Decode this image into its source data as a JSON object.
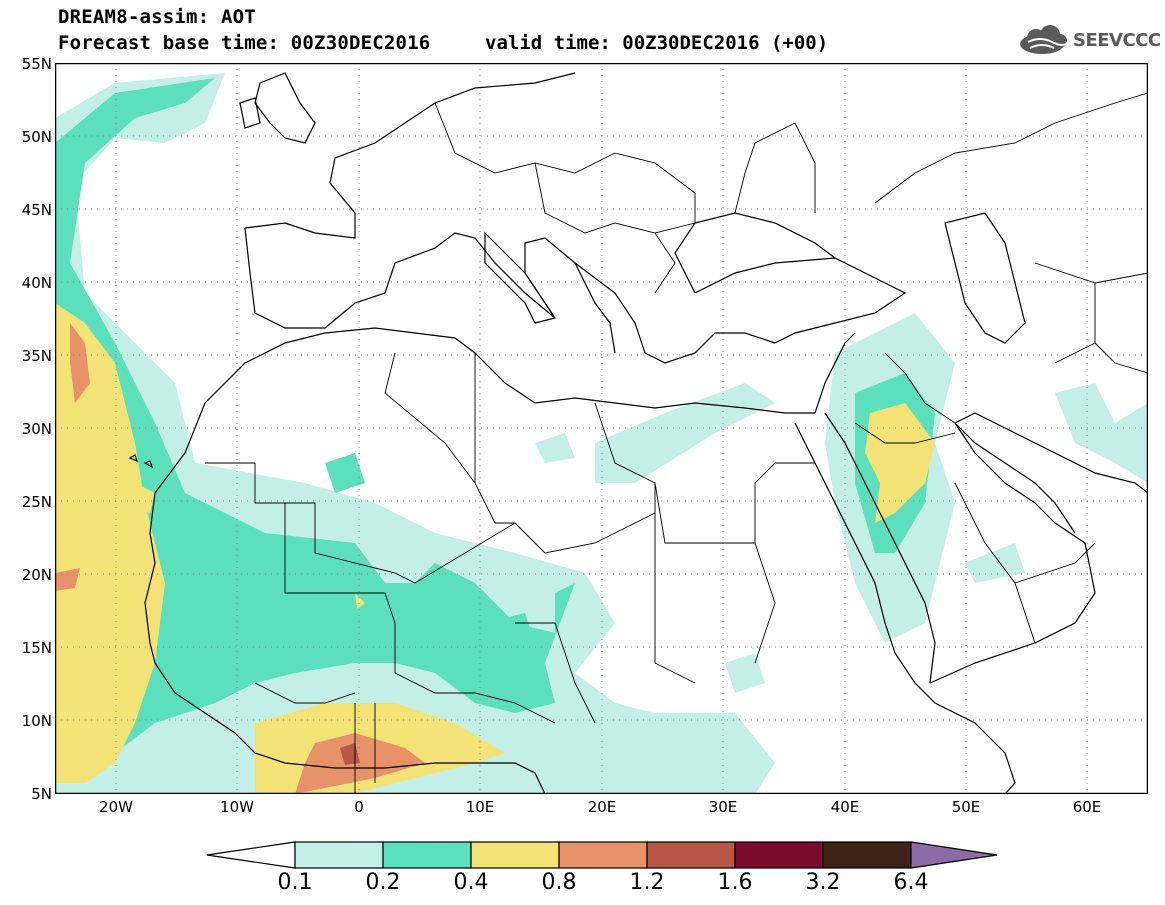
{
  "title": {
    "line1": "DREAM8-assim: AOT",
    "line2": "Forecast base time: 00Z30DEC2016",
    "valid": "valid time: 00Z30DEC2016 (+00)"
  },
  "logo": {
    "text": "SEEVCCC",
    "icon": "cloud-icon"
  },
  "map": {
    "lon_range": [
      -25,
      65
    ],
    "lat_range": [
      5,
      55
    ],
    "lat_labels": [
      "55N",
      "50N",
      "45N",
      "40N",
      "35N",
      "30N",
      "25N",
      "20N",
      "15N",
      "10N",
      "5N"
    ],
    "lon_labels": [
      "20W",
      "10W",
      "0",
      "10E",
      "20E",
      "30E",
      "40E",
      "50E",
      "60E"
    ],
    "grid": "dotted"
  },
  "colorbar": {
    "labels": [
      "0.1",
      "0.2",
      "0.4",
      "0.8",
      "1.2",
      "1.6",
      "3.2",
      "6.4"
    ],
    "colors": [
      "#ffffff",
      "#c3efe6",
      "#5bdfbd",
      "#f3e377",
      "#e8926a",
      "#b75748",
      "#7c0b2a",
      "#3e2418",
      "#8e6aa7"
    ]
  }
}
